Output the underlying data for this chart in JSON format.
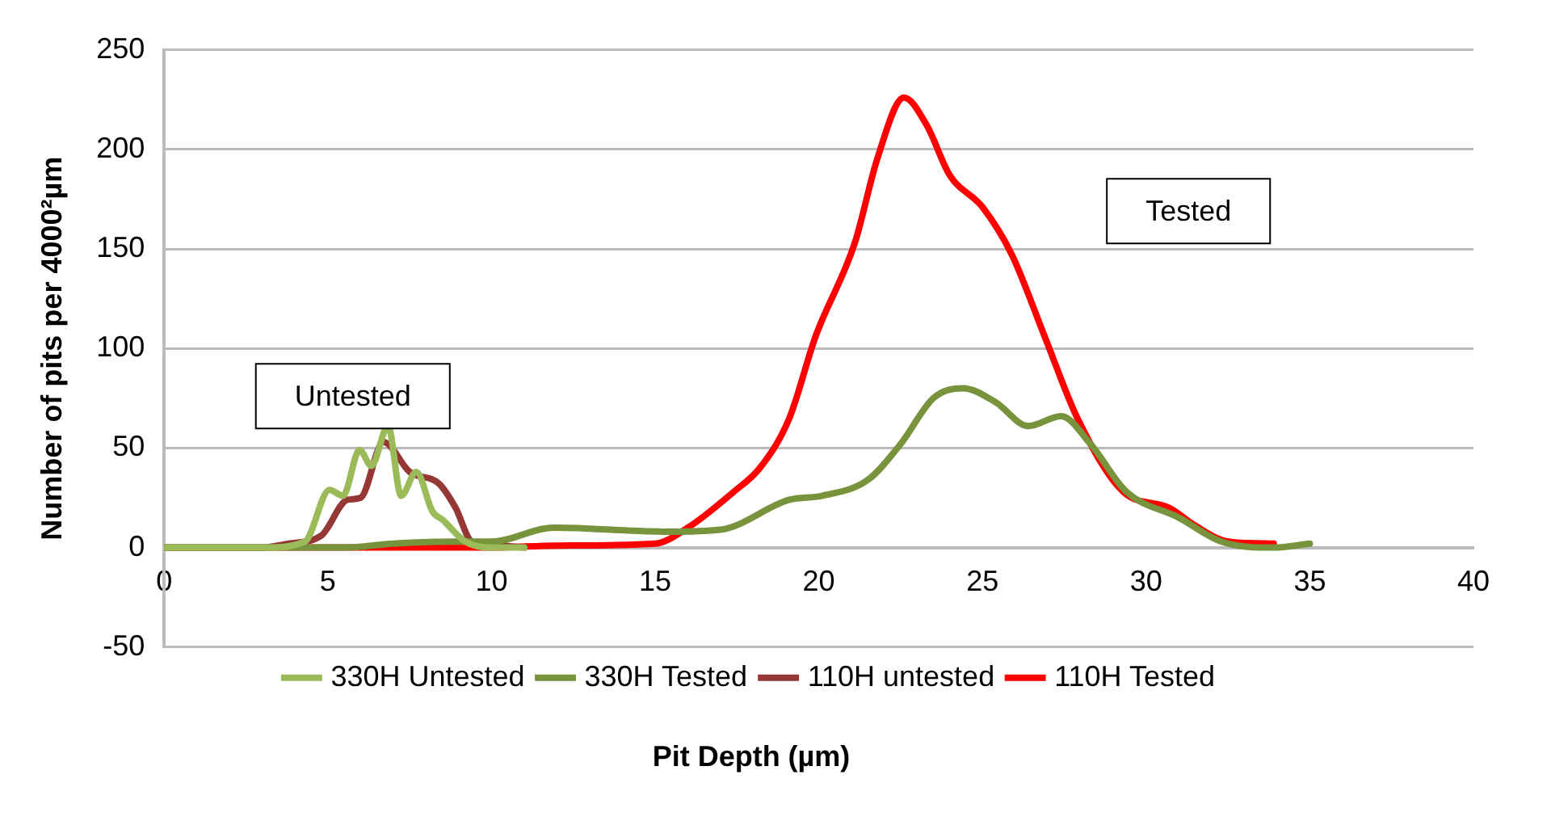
{
  "chart_data": {
    "type": "line",
    "xlabel": "Pit Depth (µm)",
    "ylabel": "Number of pits per 4000²µm",
    "xlim": [
      0,
      40
    ],
    "xticks": [
      0,
      5,
      10,
      15,
      20,
      25,
      30,
      35,
      40
    ],
    "ylim": [
      -50,
      250
    ],
    "yticks": [
      -50,
      0,
      50,
      100,
      150,
      200,
      250
    ],
    "grid": "y",
    "legend": "bottom",
    "marker": "none",
    "line_style": "solid",
    "annotations": [
      "Untested",
      "Tested"
    ],
    "series": [
      {
        "name": "330H Untested",
        "color": "#9bbb59",
        "x": [
          0,
          3,
          4.3,
          5.05,
          5.46,
          5.97,
          6.33,
          6.84,
          7.24,
          7.7,
          8.2,
          8.5,
          9.2,
          10,
          11
        ],
        "values": [
          0,
          0,
          3,
          29,
          26,
          49,
          41,
          61,
          26,
          38,
          18,
          14,
          3,
          0,
          0
        ]
      },
      {
        "name": "330H Tested",
        "color": "#77933c",
        "x": [
          0,
          5.5,
          7,
          9,
          10,
          11.9,
          15.4,
          17,
          19.1,
          20.1,
          21.5,
          22.5,
          23.5,
          24.4,
          25.4,
          26.4,
          27.4,
          28.3,
          29.4,
          31,
          32.3,
          33.9,
          35
        ],
        "values": [
          0,
          0,
          2,
          3,
          3,
          10,
          8,
          9,
          24,
          26,
          34,
          52,
          75,
          80,
          73,
          61,
          66,
          52,
          28,
          15,
          3,
          0,
          2
        ]
      },
      {
        "name": "110H untested",
        "color": "#953735",
        "x": [
          0,
          3,
          3.8,
          4.8,
          5.6,
          6,
          6.7,
          7.5,
          8.4,
          8.9,
          9.4,
          10.3,
          11
        ],
        "values": [
          0,
          0,
          2,
          6,
          24,
          25,
          53,
          38,
          32,
          20,
          3,
          1,
          0
        ]
      },
      {
        "name": "110H Tested",
        "color": "#ff0000",
        "x": [
          0,
          5,
          10,
          12,
          15,
          16,
          17.4,
          18.2,
          19.1,
          19.9,
          21.1,
          21.8,
          22.6,
          23.3,
          24,
          25,
          25.9,
          26.9,
          27.9,
          29.3,
          30.7,
          31.5,
          32.5,
          33.9
        ],
        "values": [
          0,
          0,
          0,
          1,
          2,
          10,
          28,
          40,
          65,
          106,
          153,
          196,
          226,
          212,
          187,
          171,
          147,
          106,
          65,
          28,
          20,
          11,
          3,
          2
        ]
      }
    ]
  }
}
